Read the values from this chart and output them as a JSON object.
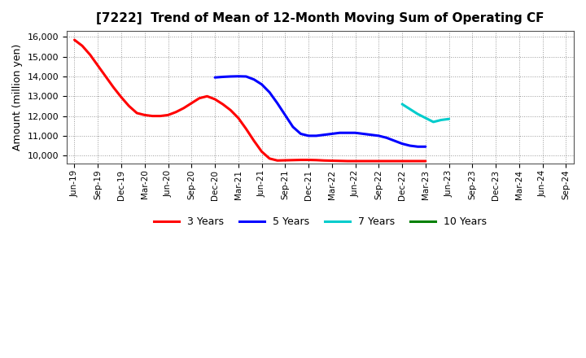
{
  "title": "[7222]  Trend of Mean of 12-Month Moving Sum of Operating CF",
  "ylabel": "Amount (million yen)",
  "background_color": "#ffffff",
  "plot_bg_color": "#ffffff",
  "grid_color": "#999999",
  "ylim": [
    9600,
    16300
  ],
  "yticks": [
    10000,
    11000,
    12000,
    13000,
    14000,
    15000,
    16000
  ],
  "series": {
    "3years": {
      "color": "#ff0000",
      "label": "3 Years",
      "x": [
        0,
        1,
        2,
        3,
        4,
        5,
        6,
        7,
        8,
        9,
        10,
        11,
        12,
        13,
        14,
        15,
        16,
        17,
        18,
        19,
        20,
        21,
        22,
        23,
        24,
        25,
        26,
        27,
        28,
        29,
        30,
        31,
        32,
        33,
        34,
        35,
        36,
        37,
        38,
        39,
        40,
        41,
        42,
        43,
        44,
        45
      ],
      "y": [
        15850,
        15550,
        15100,
        14550,
        14000,
        13450,
        12950,
        12500,
        12150,
        12050,
        12000,
        12000,
        12050,
        12200,
        12400,
        12650,
        12900,
        13000,
        12850,
        12600,
        12300,
        11900,
        11350,
        10750,
        10200,
        9850,
        9750,
        9760,
        9770,
        9780,
        9780,
        9770,
        9750,
        9740,
        9730,
        9720,
        9720,
        9720,
        9720,
        9720,
        9720,
        9720,
        9720,
        9720,
        9720,
        9720
      ]
    },
    "5years": {
      "color": "#0000ff",
      "label": "5 Years",
      "x": [
        18,
        19,
        20,
        21,
        22,
        23,
        24,
        25,
        26,
        27,
        28,
        29,
        30,
        31,
        32,
        33,
        34,
        35,
        36,
        37,
        38,
        39,
        40,
        41,
        42,
        43,
        44,
        45
      ],
      "y": [
        13950,
        13980,
        14000,
        14010,
        14000,
        13850,
        13600,
        13200,
        12650,
        12050,
        11450,
        11100,
        11000,
        11000,
        11050,
        11100,
        11150,
        11150,
        11150,
        11100,
        11050,
        11000,
        10900,
        10750,
        10600,
        10500,
        10450,
        10450
      ]
    },
    "7years": {
      "color": "#00cccc",
      "label": "7 Years",
      "x": [
        42,
        43,
        44,
        45,
        46,
        47,
        48
      ],
      "y": [
        12600,
        12350,
        12100,
        11900,
        11700,
        11800,
        11850
      ]
    },
    "10years": {
      "color": "#008000",
      "label": "10 Years",
      "x": [],
      "y": []
    }
  },
  "xtick_labels": [
    "Jun-19",
    "Sep-19",
    "Dec-19",
    "Mar-20",
    "Jun-20",
    "Sep-20",
    "Dec-20",
    "Mar-21",
    "Jun-21",
    "Sep-21",
    "Dec-21",
    "Mar-22",
    "Jun-22",
    "Sep-22",
    "Dec-22",
    "Mar-23",
    "Jun-23",
    "Sep-23",
    "Dec-23",
    "Mar-24",
    "Jun-24",
    "Sep-24"
  ],
  "xtick_positions": [
    0,
    3,
    6,
    9,
    12,
    15,
    18,
    21,
    24,
    27,
    30,
    33,
    36,
    39,
    42,
    45,
    48,
    51,
    54,
    57,
    60,
    63
  ],
  "xlim": [
    -1,
    64
  ]
}
